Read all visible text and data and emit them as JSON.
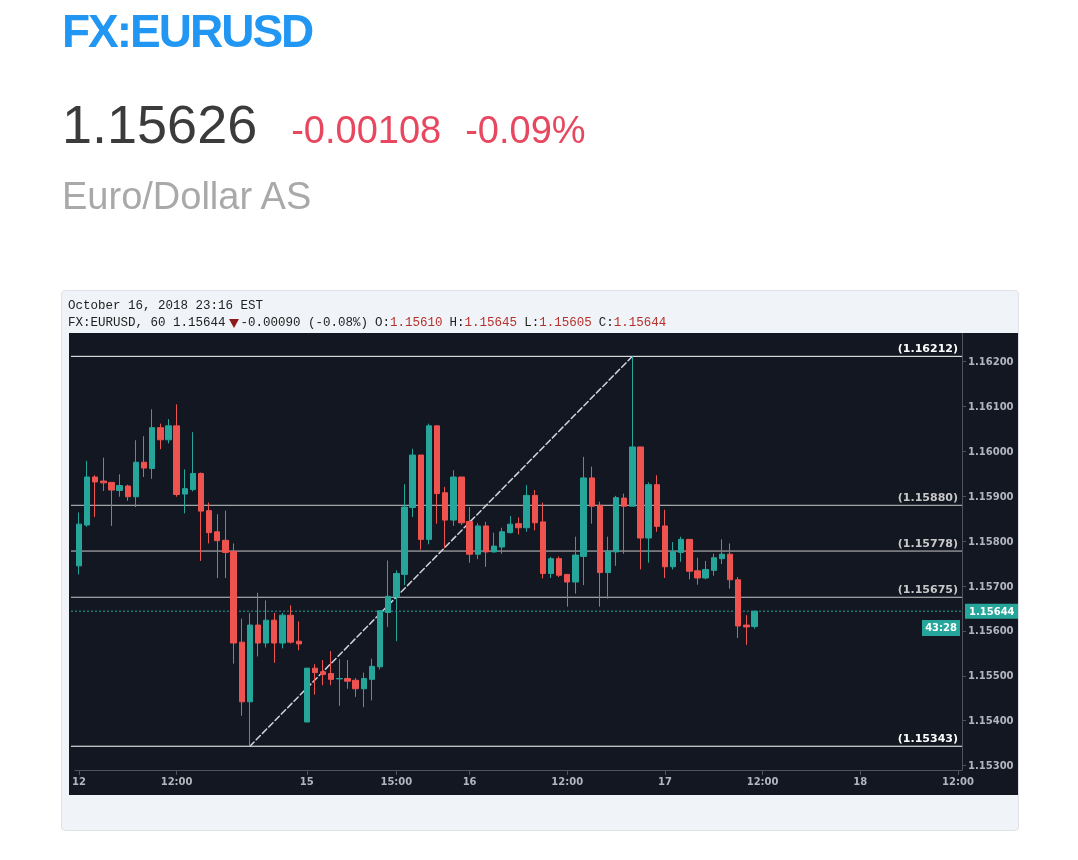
{
  "chart_data": {
    "type": "candlestick",
    "title": "FX:EURUSD",
    "subtitle": "Euro/Dollar AS",
    "annotations": [
      "1.15626",
      "-0.00108",
      "-0.09%",
      "October 16, 2018 23:16 EST",
      "FX:EURUSD, 60 1.15644",
      "-0.00090 (-0.08%)",
      "O:",
      "1.15610",
      "H:",
      "1.15645",
      "L:",
      "1.15605",
      "C:",
      "1.15644",
      "43:28"
    ],
    "categories": [
      "12",
      null,
      null,
      null,
      null,
      null,
      null,
      null,
      null,
      null,
      null,
      null,
      "12:00",
      null,
      null,
      null,
      null,
      null,
      null,
      null,
      null,
      null,
      null,
      null,
      null,
      null,
      null,
      null,
      "15",
      null,
      null,
      null,
      null,
      null,
      null,
      null,
      null,
      null,
      null,
      "15:00",
      null,
      null,
      null,
      null,
      null,
      null,
      null,
      null,
      "16",
      null,
      null,
      null,
      null,
      null,
      null,
      null,
      null,
      null,
      null,
      null,
      "12:00",
      null,
      null,
      null,
      null,
      null,
      null,
      null,
      null,
      null,
      null,
      null,
      "17",
      null,
      null,
      null,
      null,
      null,
      null,
      null,
      null,
      null,
      null,
      null,
      "12:00",
      null,
      null,
      null,
      null,
      null,
      null,
      null,
      null,
      null,
      null,
      null,
      "18",
      null,
      null,
      null,
      null,
      null,
      null,
      null,
      null,
      null,
      null,
      null,
      "12:00"
    ],
    "series": [
      {
        "type": "candlestick",
        "ohlc": [
          [
            1.15745,
            1.15864,
            1.15726,
            1.15838
          ],
          [
            1.15836,
            1.15979,
            1.15832,
            1.15943
          ],
          [
            1.15943,
            1.15947,
            1.15854,
            1.15932
          ],
          [
            1.15934,
            1.15986,
            1.15912,
            1.1593
          ],
          [
            1.15931,
            1.15931,
            1.15834,
            1.15914
          ],
          [
            1.15913,
            1.15949,
            1.15899,
            1.15924
          ],
          [
            1.15923,
            1.15926,
            1.1589,
            1.15899
          ],
          [
            1.15899,
            1.16025,
            1.15876,
            1.15976
          ],
          [
            1.15976,
            1.16034,
            1.15943,
            1.15963
          ],
          [
            1.15962,
            1.16094,
            1.15939,
            1.16053
          ],
          [
            1.16053,
            1.16062,
            1.16005,
            1.16026
          ],
          [
            1.16026,
            1.16072,
            1.16018,
            1.16057
          ],
          [
            1.16057,
            1.16105,
            1.15899,
            1.15904
          ],
          [
            1.15905,
            1.1596,
            1.15862,
            1.15917
          ],
          [
            1.15915,
            1.16043,
            1.15911,
            1.15951
          ],
          [
            1.15951,
            1.15953,
            1.15756,
            1.15867
          ],
          [
            1.15868,
            1.15886,
            1.15795,
            1.15819
          ],
          [
            1.15821,
            1.1586,
            1.15718,
            1.15801
          ],
          [
            1.15802,
            1.15868,
            1.15718,
            1.15775
          ],
          [
            1.15777,
            1.15795,
            1.15527,
            1.15573
          ],
          [
            1.15575,
            1.15627,
            1.15411,
            1.15442
          ],
          [
            1.15442,
            1.1564,
            1.15343,
            1.15613
          ],
          [
            1.15613,
            1.15685,
            1.15543,
            1.15573
          ],
          [
            1.15573,
            1.15668,
            1.15563,
            1.15624
          ],
          [
            1.15624,
            1.1564,
            1.15529,
            1.15573
          ],
          [
            1.15573,
            1.1564,
            1.15561,
            1.15635
          ],
          [
            1.15635,
            1.15657,
            1.15572,
            1.15575
          ],
          [
            1.15577,
            1.15621,
            1.15557,
            1.15571
          ],
          [
            1.15397,
            1.15517,
            1.15397,
            1.15517
          ],
          [
            1.15517,
            1.15526,
            1.15458,
            1.15507
          ],
          [
            1.15509,
            1.15535,
            1.15479,
            1.15503
          ],
          [
            1.15505,
            1.15555,
            1.15479,
            1.15492
          ],
          [
            1.15493,
            1.15537,
            1.15433,
            1.15494
          ],
          [
            1.15494,
            1.15535,
            1.15471,
            1.15488
          ],
          [
            1.1549,
            1.15495,
            1.15453,
            1.15471
          ],
          [
            1.15471,
            1.15507,
            1.1543,
            1.15494
          ],
          [
            1.15492,
            1.15538,
            1.15445,
            1.15521
          ],
          [
            1.1552,
            1.15645,
            1.15514,
            1.15645
          ],
          [
            1.15641,
            1.15757,
            1.15609,
            1.15677
          ],
          [
            1.15676,
            1.15735,
            1.15577,
            1.15728
          ],
          [
            1.15726,
            1.15927,
            1.15702,
            1.15876
          ],
          [
            1.15875,
            1.16006,
            1.15854,
            1.15992
          ],
          [
            1.15992,
            1.15992,
            1.15781,
            1.15804
          ],
          [
            1.15804,
            1.16062,
            1.15793,
            1.16057
          ],
          [
            1.16057,
            1.16058,
            1.15839,
            1.15906
          ],
          [
            1.15908,
            1.15921,
            1.15784,
            1.15847
          ],
          [
            1.15847,
            1.15958,
            1.15834,
            1.15943
          ],
          [
            1.15943,
            1.15943,
            1.15836,
            1.15841
          ],
          [
            1.15844,
            1.15876,
            1.15752,
            1.15771
          ],
          [
            1.15771,
            1.1584,
            1.1576,
            1.15834
          ],
          [
            1.15834,
            1.15843,
            1.15743,
            1.15776
          ],
          [
            1.15776,
            1.15819,
            1.15775,
            1.15789
          ],
          [
            1.15787,
            1.1583,
            1.15772,
            1.15821
          ],
          [
            1.15819,
            1.15856,
            1.15817,
            1.15838
          ],
          [
            1.15839,
            1.15853,
            1.15815,
            1.1583
          ],
          [
            1.1583,
            1.15925,
            1.15821,
            1.15902
          ],
          [
            1.15902,
            1.15914,
            1.15824,
            1.15841
          ],
          [
            1.15843,
            1.15886,
            1.15717,
            1.15728
          ],
          [
            1.15728,
            1.15765,
            1.15718,
            1.15761
          ],
          [
            1.15761,
            1.15766,
            1.1572,
            1.15724
          ],
          [
            1.15726,
            1.15726,
            1.15654,
            1.15709
          ],
          [
            1.15709,
            1.1581,
            1.15683,
            1.15769
          ],
          [
            1.15766,
            1.15988,
            1.15702,
            1.15941
          ],
          [
            1.15941,
            1.15966,
            1.15839,
            1.15878
          ],
          [
            1.1588,
            1.15888,
            1.15654,
            1.1573
          ],
          [
            1.1573,
            1.1581,
            1.15672,
            1.15778
          ],
          [
            1.15776,
            1.15901,
            1.15745,
            1.15897
          ],
          [
            1.15896,
            1.15906,
            1.15772,
            1.15878
          ],
          [
            1.15878,
            1.16212,
            1.15878,
            1.1601
          ],
          [
            1.1601,
            1.1601,
            1.15737,
            1.15807
          ],
          [
            1.15807,
            1.15931,
            1.15752,
            1.15926
          ],
          [
            1.15926,
            1.15947,
            1.15821,
            1.15833
          ],
          [
            1.15834,
            1.1587,
            1.15718,
            1.15743
          ],
          [
            1.15743,
            1.15798,
            1.15737,
            1.15776
          ],
          [
            1.15775,
            1.1581,
            1.15754,
            1.15804
          ],
          [
            1.15804,
            1.15804,
            1.15715,
            1.15733
          ],
          [
            1.15734,
            1.15763,
            1.15703,
            1.15718
          ],
          [
            1.15718,
            1.15756,
            1.15715,
            1.15737
          ],
          [
            1.15735,
            1.15772,
            1.15723,
            1.15763
          ],
          [
            1.15761,
            1.15804,
            1.15749,
            1.15771
          ],
          [
            1.15771,
            1.15795,
            1.15694,
            1.15714
          ],
          [
            1.15714,
            1.1572,
            1.15584,
            1.15611
          ],
          [
            1.15613,
            1.15635,
            1.15569,
            1.15609
          ],
          [
            1.1561,
            1.15645,
            1.15605,
            1.15644
          ],
          null,
          null,
          null,
          null,
          null,
          null,
          null,
          null,
          null,
          null,
          null,
          null,
          null,
          null,
          null,
          null,
          null,
          null,
          null,
          null,
          null,
          null,
          null,
          null,
          null
        ],
        "colors": [
          "#26a69a",
          "#26a69a",
          "#ef5350",
          "#ef5350",
          "#ef5350",
          "#26a69a",
          "#ef5350",
          "#26a69a",
          "#ef5350",
          "#26a69a",
          "#ef5350",
          "#26a69a",
          "#ef5350",
          "#26a69a",
          "#26a69a",
          "#ef5350",
          "#ef5350",
          "#ef5350",
          "#ef5350",
          "#ef5350",
          "#ef5350",
          "#26a69a",
          "#ef5350",
          "#26a69a",
          "#ef5350",
          "#26a69a",
          "#ef5350",
          "#ef5350",
          "#26a69a",
          "#ef5350",
          "#ef5350",
          "#ef5350",
          "#26a69a",
          "#ef5350",
          "#ef5350",
          "#26a69a",
          "#26a69a",
          "#26a69a",
          "#26a69a",
          "#26a69a",
          "#26a69a",
          "#26a69a",
          "#ef5350",
          "#26a69a",
          "#ef5350",
          "#ef5350",
          "#26a69a",
          "#ef5350",
          "#ef5350",
          "#26a69a",
          "#ef5350",
          "#26a69a",
          "#26a69a",
          "#26a69a",
          "#ef5350",
          "#26a69a",
          "#ef5350",
          "#ef5350",
          "#26a69a",
          "#ef5350",
          "#ef5350",
          "#26a69a",
          "#26a69a",
          "#ef5350",
          "#ef5350",
          "#26a69a",
          "#26a69a",
          "#ef5350",
          "#26a69a",
          "#ef5350",
          "#26a69a",
          "#ef5350",
          "#ef5350",
          "#26a69a",
          "#26a69a",
          "#ef5350",
          "#ef5350",
          "#26a69a",
          "#26a69a",
          "#26a69a",
          "#ef5350",
          "#ef5350",
          "#ef5350",
          "#26a69a",
          null,
          null,
          null,
          null,
          null,
          null,
          null,
          null,
          null,
          null,
          null,
          null,
          null,
          null,
          null,
          null,
          null,
          null,
          null,
          null,
          null,
          null,
          null,
          null,
          null
        ]
      },
      {
        "type": "line",
        "color": "#d1d4dc",
        "line_style": "dashed",
        "values": [
          null,
          null,
          null,
          null,
          null,
          null,
          null,
          null,
          null,
          null,
          null,
          null,
          null,
          null,
          null,
          null,
          null,
          null,
          null,
          null,
          null,
          1.15343,
          null,
          null,
          null,
          null,
          null,
          null,
          null,
          null,
          null,
          null,
          null,
          null,
          null,
          null,
          null,
          null,
          null,
          null,
          null,
          null,
          null,
          null,
          null,
          null,
          null,
          null,
          null,
          null,
          null,
          null,
          null,
          null,
          null,
          null,
          null,
          null,
          null,
          null,
          null,
          null,
          null,
          null,
          null,
          null,
          null,
          null,
          1.16212,
          null,
          null,
          null,
          null,
          null,
          null,
          null,
          null,
          null,
          null,
          null,
          null,
          null,
          null,
          null,
          null,
          null,
          null,
          null,
          null,
          null,
          null,
          null,
          null,
          null,
          null,
          null,
          null,
          null,
          null,
          null,
          null,
          null,
          null,
          null,
          null,
          null,
          null,
          null,
          null
        ]
      }
    ],
    "ylim": [
      1.1529,
      1.16264
    ],
    "yticks": [
      {
        "value": 1.153,
        "label": "1.15300"
      },
      {
        "value": 1.154,
        "label": "1.15400"
      },
      {
        "value": 1.155,
        "label": "1.15500"
      },
      {
        "value": 1.156,
        "label": "1.15600"
      },
      {
        "value": 1.157,
        "label": "1.15700"
      },
      {
        "value": 1.158,
        "label": "1.15800"
      },
      {
        "value": 1.159,
        "label": "1.15900"
      },
      {
        "value": 1.16,
        "label": "1.16000"
      },
      {
        "value": 1.161,
        "label": "1.16100"
      },
      {
        "value": 1.162,
        "label": "1.16200"
      }
    ],
    "ref_lines": [
      {
        "axis": "y",
        "value": 1.16212,
        "label": "(1.16212)",
        "color": "#ffffff"
      },
      {
        "axis": "y",
        "value": 1.1588,
        "label": "(1.15880)",
        "color": "#c8c8c8"
      },
      {
        "axis": "y",
        "value": 1.15778,
        "label": "(1.15778)",
        "color": "#c8c8c8"
      },
      {
        "axis": "y",
        "value": 1.15675,
        "label": "(1.15675)",
        "color": "#c8c8c8"
      },
      {
        "axis": "y",
        "value": 1.15343,
        "label": "(1.15343)",
        "color": "#ffffff"
      },
      {
        "axis": "y",
        "value": 1.15644,
        "label": "1.15644",
        "color": "#26a69a",
        "line_style": "dotted"
      }
    ]
  }
}
